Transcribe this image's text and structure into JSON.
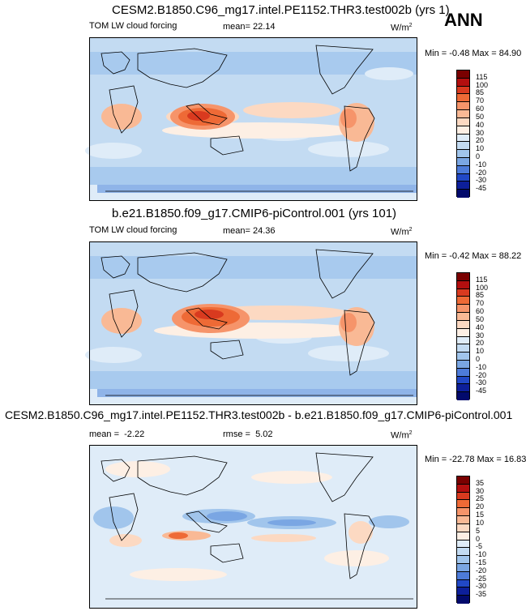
{
  "season": "ANN",
  "chart_data": [
    {
      "type": "heatmap",
      "title": "CESM2.B1850.C96_mg17.intel.PE1152.THR3.test002b (yrs 1)",
      "variable": "TOM LW cloud forcing",
      "mean_label": "mean=",
      "mean_value": "22.14",
      "units_base": "W/m",
      "units_exp": "2",
      "range_text": "Min =  -0.48 Max =  84.90",
      "min": -0.48,
      "max": 84.9,
      "colorbar_levels": [
        "115",
        "100",
        "85",
        "70",
        "60",
        "50",
        "40",
        "30",
        "20",
        "10",
        "0",
        "-10",
        "-20",
        "-30",
        "-45"
      ],
      "colorbar_colors": [
        "#7a0000",
        "#b30f0f",
        "#d93a1f",
        "#ee6a36",
        "#f6946a",
        "#f9b995",
        "#fcd9c2",
        "#fdefe4",
        "#dfecf8",
        "#c3dbf2",
        "#a1c5ec",
        "#7aa6e3",
        "#4d7bd9",
        "#2148c6",
        "#0d1f9a",
        "#020a6c"
      ]
    },
    {
      "type": "heatmap",
      "title": "b.e21.B1850.f09_g17.CMIP6-piControl.001 (yrs 101)",
      "variable": "TOM LW cloud forcing",
      "mean_label": "mean=",
      "mean_value": "24.36",
      "units_base": "W/m",
      "units_exp": "2",
      "range_text": "Min =  -0.42 Max =  88.22",
      "min": -0.42,
      "max": 88.22,
      "colorbar_levels": [
        "115",
        "100",
        "85",
        "70",
        "60",
        "50",
        "40",
        "30",
        "20",
        "10",
        "0",
        "-10",
        "-20",
        "-30",
        "-45"
      ],
      "colorbar_colors": [
        "#7a0000",
        "#b30f0f",
        "#d93a1f",
        "#ee6a36",
        "#f6946a",
        "#f9b995",
        "#fcd9c2",
        "#fdefe4",
        "#dfecf8",
        "#c3dbf2",
        "#a1c5ec",
        "#7aa6e3",
        "#4d7bd9",
        "#2148c6",
        "#0d1f9a",
        "#020a6c"
      ]
    },
    {
      "type": "heatmap",
      "title": "CESM2.B1850.C96_mg17.intel.PE1152.THR3.test002b - b.e21.B1850.f09_g17.CMIP6-piControl.001",
      "variable": "",
      "mean_label": "mean =",
      "mean_value": "-2.22",
      "rmse_label": "rmse =",
      "rmse_value": "5.02",
      "units_base": "W/m",
      "units_exp": "2",
      "range_text": "Min = -22.78 Max =  16.83",
      "min": -22.78,
      "max": 16.83,
      "colorbar_levels": [
        "35",
        "30",
        "25",
        "20",
        "15",
        "10",
        "5",
        "0",
        "-5",
        "-10",
        "-15",
        "-20",
        "-25",
        "-30",
        "-35"
      ],
      "colorbar_colors": [
        "#7a0000",
        "#b30f0f",
        "#d93a1f",
        "#ee6a36",
        "#f6946a",
        "#f9b995",
        "#fcd9c2",
        "#fdefe4",
        "#dfecf8",
        "#c3dbf2",
        "#a1c5ec",
        "#7aa6e3",
        "#4d7bd9",
        "#2148c6",
        "#0d1f9a",
        "#020a6c"
      ]
    }
  ]
}
